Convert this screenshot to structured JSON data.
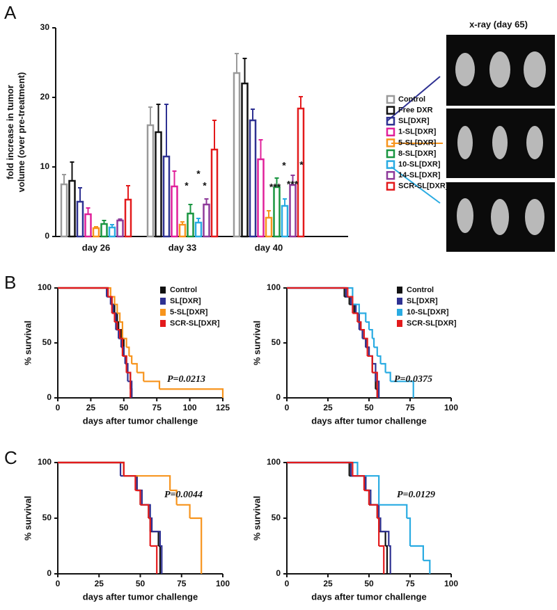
{
  "panels": [
    "A",
    "B",
    "C"
  ],
  "xray_title": "x-ray (day 65)",
  "chart_data": [
    {
      "type": "bar",
      "ylabel": "fold increase in tumor volume (over pre-treatment)",
      "categories": [
        "day 26",
        "day 33",
        "day 40"
      ],
      "ylim": [
        0,
        30
      ],
      "yticks": [
        0,
        10,
        20,
        30
      ],
      "series": [
        {
          "name": "Control",
          "color": "#9a9a9a",
          "values": [
            7.5,
            16,
            23.5
          ],
          "errors": [
            1.4,
            2.6,
            2.8
          ]
        },
        {
          "name": "Free DXR",
          "color": "#111111",
          "values": [
            8,
            15,
            22
          ],
          "errors": [
            2.7,
            4,
            3.6
          ]
        },
        {
          "name": "SL[DXR]",
          "color": "#2e3192",
          "values": [
            5,
            11.5,
            16.7
          ],
          "errors": [
            2,
            7.5,
            1.6
          ]
        },
        {
          "name": "1-SL[DXR]",
          "color": "#e0209a",
          "values": [
            3.2,
            7.2,
            11.1
          ],
          "errors": [
            0.9,
            2.2,
            2.8
          ]
        },
        {
          "name": "5-SL[DXR]",
          "color": "#f7941d",
          "values": [
            1.2,
            1.7,
            2.7
          ],
          "errors": [
            0.2,
            0.4,
            1
          ]
        },
        {
          "name": "8-SL[DXR]",
          "color": "#1a9641",
          "values": [
            1.8,
            3.3,
            7.1
          ],
          "errors": [
            0.5,
            1.3,
            1.3
          ]
        },
        {
          "name": "10-SL[DXR]",
          "color": "#29abe2",
          "values": [
            1.3,
            2,
            4.4
          ],
          "errors": [
            0.4,
            0.6,
            1
          ]
        },
        {
          "name": "14-SL[DXR]",
          "color": "#8e3a9a",
          "values": [
            2.3,
            4.6,
            7.4
          ],
          "errors": [
            0.2,
            0.8,
            1.4
          ]
        },
        {
          "name": "SCR-SL[DXR]",
          "color": "#e31a1c",
          "values": [
            5.3,
            12.5,
            18.4
          ],
          "errors": [
            2,
            4.2,
            1.7
          ]
        }
      ],
      "annotations": [
        "*",
        "*",
        "*",
        "***",
        "*",
        "***",
        "*"
      ]
    },
    {
      "type": "step",
      "xlabel": "days after tumor challenge",
      "ylabel": "% survival",
      "xlim": [
        0,
        125
      ],
      "xticks": [
        0,
        25,
        50,
        75,
        100,
        125
      ],
      "ylim": [
        0,
        100
      ],
      "yticks": [
        0,
        50,
        100
      ],
      "annotation": "P=0.0213",
      "series": [
        {
          "name": "Control",
          "color": "#111111",
          "x": [
            0,
            38,
            41,
            43,
            45,
            46,
            48,
            50,
            52,
            55,
            56
          ],
          "values": [
            100,
            92,
            85,
            77,
            69,
            62,
            54,
            38,
            23,
            8,
            0
          ]
        },
        {
          "name": "SL[DXR]",
          "color": "#2e3192",
          "x": [
            0,
            37,
            40,
            42,
            44,
            46,
            48,
            50,
            51,
            53,
            56
          ],
          "values": [
            100,
            92,
            85,
            77,
            62,
            54,
            46,
            38,
            31,
            15,
            0
          ]
        },
        {
          "name": "5-SL[DXR]",
          "color": "#f7941d",
          "x": [
            0,
            40,
            43,
            45,
            47,
            49,
            52,
            54,
            56,
            60,
            65,
            77,
            125
          ],
          "values": [
            100,
            92,
            85,
            77,
            69,
            54,
            46,
            38,
            31,
            23,
            15,
            8,
            0
          ]
        },
        {
          "name": "SCR-SL[DXR]",
          "color": "#e31a1c",
          "x": [
            0,
            38,
            41,
            43,
            45,
            47,
            49,
            52,
            55
          ],
          "values": [
            100,
            92,
            77,
            69,
            62,
            54,
            38,
            23,
            0
          ]
        }
      ]
    },
    {
      "type": "step",
      "xlabel": "days after tumor challenge",
      "ylabel": "% survival",
      "xlim": [
        0,
        100
      ],
      "xticks": [
        0,
        25,
        50,
        75,
        100
      ],
      "ylim": [
        0,
        100
      ],
      "yticks": [
        0,
        50,
        100
      ],
      "annotation": "P=0.0375",
      "series": [
        {
          "name": "Control",
          "color": "#111111",
          "x": [
            0,
            35,
            38,
            41,
            43,
            45,
            46,
            48,
            50,
            52,
            54,
            55
          ],
          "values": [
            100,
            92,
            85,
            77,
            69,
            62,
            54,
            46,
            38,
            23,
            8,
            0
          ]
        },
        {
          "name": "SL[DXR]",
          "color": "#2e3192",
          "x": [
            0,
            36,
            39,
            42,
            44,
            46,
            48,
            50,
            52,
            54,
            56
          ],
          "values": [
            100,
            92,
            85,
            77,
            62,
            54,
            46,
            38,
            31,
            15,
            0
          ]
        },
        {
          "name": "10-SL[DXR]",
          "color": "#29abe2",
          "x": [
            0,
            40,
            44,
            48,
            50,
            52,
            53,
            55,
            57,
            60,
            63,
            77
          ],
          "values": [
            100,
            85,
            77,
            69,
            62,
            54,
            46,
            38,
            31,
            23,
            15,
            0
          ]
        },
        {
          "name": "SCR-SL[DXR]",
          "color": "#e31a1c",
          "x": [
            0,
            37,
            40,
            43,
            45,
            47,
            49,
            52,
            55
          ],
          "values": [
            100,
            92,
            77,
            69,
            62,
            54,
            38,
            23,
            0
          ]
        }
      ]
    },
    {
      "type": "step",
      "xlabel": "days after tumor challenge",
      "ylabel": "% survival",
      "xlim": [
        0,
        100
      ],
      "xticks": [
        0,
        25,
        50,
        75,
        100
      ],
      "ylim": [
        0,
        100
      ],
      "yticks": [
        0,
        50,
        100
      ],
      "annotation": "P=0.0044",
      "series": [
        {
          "color": "#111111",
          "x": [
            0,
            40,
            48,
            50,
            55,
            56,
            61,
            62
          ],
          "values": [
            100,
            88,
            75,
            62,
            50,
            38,
            25,
            0
          ]
        },
        {
          "color": "#2e3192",
          "x": [
            0,
            38,
            48,
            51,
            56,
            57,
            62,
            63
          ],
          "values": [
            100,
            88,
            75,
            62,
            50,
            38,
            25,
            0
          ]
        },
        {
          "color": "#f7941d",
          "x": [
            0,
            40,
            68,
            72,
            80,
            87
          ],
          "values": [
            100,
            88,
            75,
            62,
            50,
            0
          ]
        },
        {
          "color": "#e31a1c",
          "x": [
            0,
            40,
            47,
            50,
            55,
            56,
            60
          ],
          "values": [
            100,
            88,
            75,
            62,
            50,
            25,
            0
          ]
        }
      ]
    },
    {
      "type": "step",
      "xlabel": "days after tumor challenge",
      "ylabel": "% survival",
      "xlim": [
        0,
        100
      ],
      "xticks": [
        0,
        25,
        50,
        75,
        100
      ],
      "ylim": [
        0,
        100
      ],
      "yticks": [
        0,
        50,
        100
      ],
      "annotation": "P=0.0129",
      "series": [
        {
          "color": "#111111",
          "x": [
            0,
            38,
            48,
            50,
            55,
            56,
            60,
            61
          ],
          "values": [
            100,
            88,
            75,
            62,
            50,
            38,
            25,
            0
          ]
        },
        {
          "color": "#2e3192",
          "x": [
            0,
            39,
            48,
            51,
            56,
            57,
            62,
            63
          ],
          "values": [
            100,
            88,
            75,
            62,
            50,
            38,
            25,
            0
          ]
        },
        {
          "color": "#29abe2",
          "x": [
            0,
            43,
            56,
            73,
            75,
            83,
            87
          ],
          "values": [
            100,
            88,
            62,
            50,
            25,
            12,
            0
          ]
        },
        {
          "color": "#e31a1c",
          "x": [
            0,
            40,
            47,
            50,
            55,
            56,
            59
          ],
          "values": [
            100,
            88,
            75,
            62,
            50,
            25,
            0
          ]
        }
      ]
    }
  ]
}
